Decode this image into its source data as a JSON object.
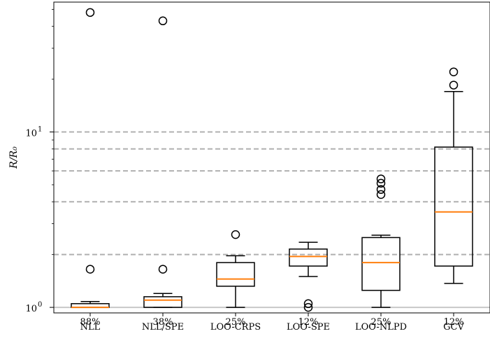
{
  "chart_data": {
    "type": "box",
    "ylabel": "R/R₀",
    "ylabel_parts": {
      "num": "R",
      "den": "R",
      "sub": "0"
    },
    "yscale": "log",
    "ylim": [
      0.93,
      55
    ],
    "y_ticks": [
      {
        "value": 1,
        "base": "10",
        "exp": "0"
      },
      {
        "value": 10,
        "base": "10",
        "exp": "1"
      }
    ],
    "reference_lines": [
      1,
      2,
      4,
      6,
      8,
      10
    ],
    "colors": {
      "box": "#000000",
      "median": "#ff7f0e",
      "refline": "#b0b0b0",
      "baseline": "#c8c8c8"
    },
    "categories": [
      "NLL",
      "NLL/SPE",
      "LOO-CRPS",
      "LOO-SPE",
      "LOO-NLPD",
      "GCV"
    ],
    "boxes": [
      {
        "name": "NLL",
        "whislo": 1.0,
        "q1": 1.0,
        "med": 1.0,
        "q3": 1.05,
        "whishi": 1.08,
        "fliers": [
          1.65,
          48
        ],
        "pct": "88%"
      },
      {
        "name": "NLL/SPE",
        "whislo": 1.0,
        "q1": 1.0,
        "med": 1.1,
        "q3": 1.15,
        "whishi": 1.2,
        "fliers": [
          1.65,
          43
        ],
        "pct": "38%"
      },
      {
        "name": "LOO-CRPS",
        "whislo": 1.0,
        "q1": 1.32,
        "med": 1.45,
        "q3": 1.8,
        "whishi": 1.97,
        "fliers": [
          2.6
        ],
        "pct": "25%"
      },
      {
        "name": "LOO-SPE",
        "whislo": 1.5,
        "q1": 1.72,
        "med": 1.95,
        "q3": 2.15,
        "whishi": 2.35,
        "fliers": [
          1.0,
          1.05
        ],
        "pct": "12%"
      },
      {
        "name": "LOO-NLPD",
        "whislo": 1.0,
        "q1": 1.25,
        "med": 1.8,
        "q3": 2.5,
        "whishi": 2.58,
        "fliers": [
          4.4,
          4.7,
          5.1,
          5.4
        ],
        "pct": "25%"
      },
      {
        "name": "GCV",
        "whislo": 1.37,
        "q1": 1.72,
        "med": 3.5,
        "q3": 8.2,
        "whishi": 17,
        "fliers": [
          18.5,
          22
        ],
        "pct": "12%"
      }
    ]
  }
}
